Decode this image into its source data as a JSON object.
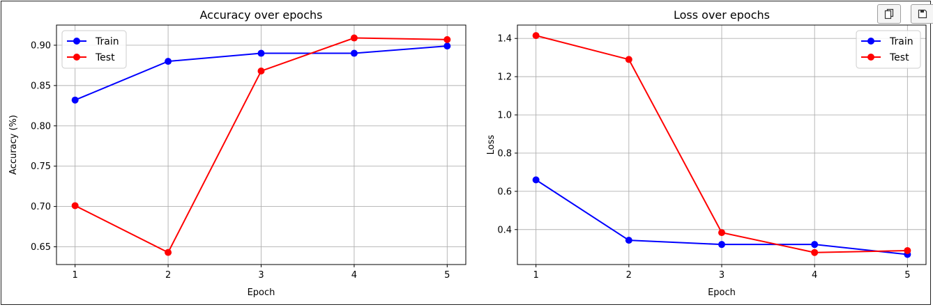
{
  "toolbar": {
    "copy_icon": "copy-icon",
    "save_icon": "save-icon"
  },
  "chart_data": [
    {
      "type": "line",
      "title": "Accuracy over epochs",
      "xlabel": "Epoch",
      "ylabel": "Accuracy (%)",
      "x": [
        1,
        2,
        3,
        4,
        5
      ],
      "xticks": [
        "1",
        "2",
        "3",
        "4",
        "5"
      ],
      "xlim": [
        0.8,
        5.2
      ],
      "ylim": [
        0.628,
        0.925
      ],
      "yticks": [
        0.65,
        0.7,
        0.75,
        0.8,
        0.85,
        0.9
      ],
      "ytick_labels": [
        "0.65",
        "0.70",
        "0.75",
        "0.80",
        "0.85",
        "0.90"
      ],
      "grid": true,
      "legend": "top-left",
      "series": [
        {
          "name": "Train",
          "color": "#0000ff",
          "values": [
            0.832,
            0.88,
            0.89,
            0.89,
            0.899
          ]
        },
        {
          "name": "Test",
          "color": "#ff0000",
          "values": [
            0.701,
            0.643,
            0.868,
            0.909,
            0.907
          ]
        }
      ]
    },
    {
      "type": "line",
      "title": "Loss over epochs",
      "xlabel": "Epoch",
      "ylabel": "Loss",
      "x": [
        1,
        2,
        3,
        4,
        5
      ],
      "xticks": [
        "1",
        "2",
        "3",
        "4",
        "5"
      ],
      "xlim": [
        0.8,
        5.2
      ],
      "ylim": [
        0.217,
        1.47
      ],
      "yticks": [
        0.4,
        0.6,
        0.8,
        1.0,
        1.2,
        1.4
      ],
      "ytick_labels": [
        "0.4",
        "0.6",
        "0.8",
        "1.0",
        "1.2",
        "1.4"
      ],
      "grid": true,
      "legend": "top-right",
      "series": [
        {
          "name": "Train",
          "color": "#0000ff",
          "values": [
            0.66,
            0.344,
            0.322,
            0.322,
            0.27
          ]
        },
        {
          "name": "Test",
          "color": "#ff0000",
          "values": [
            1.415,
            1.29,
            0.384,
            0.28,
            0.29
          ]
        }
      ]
    }
  ]
}
